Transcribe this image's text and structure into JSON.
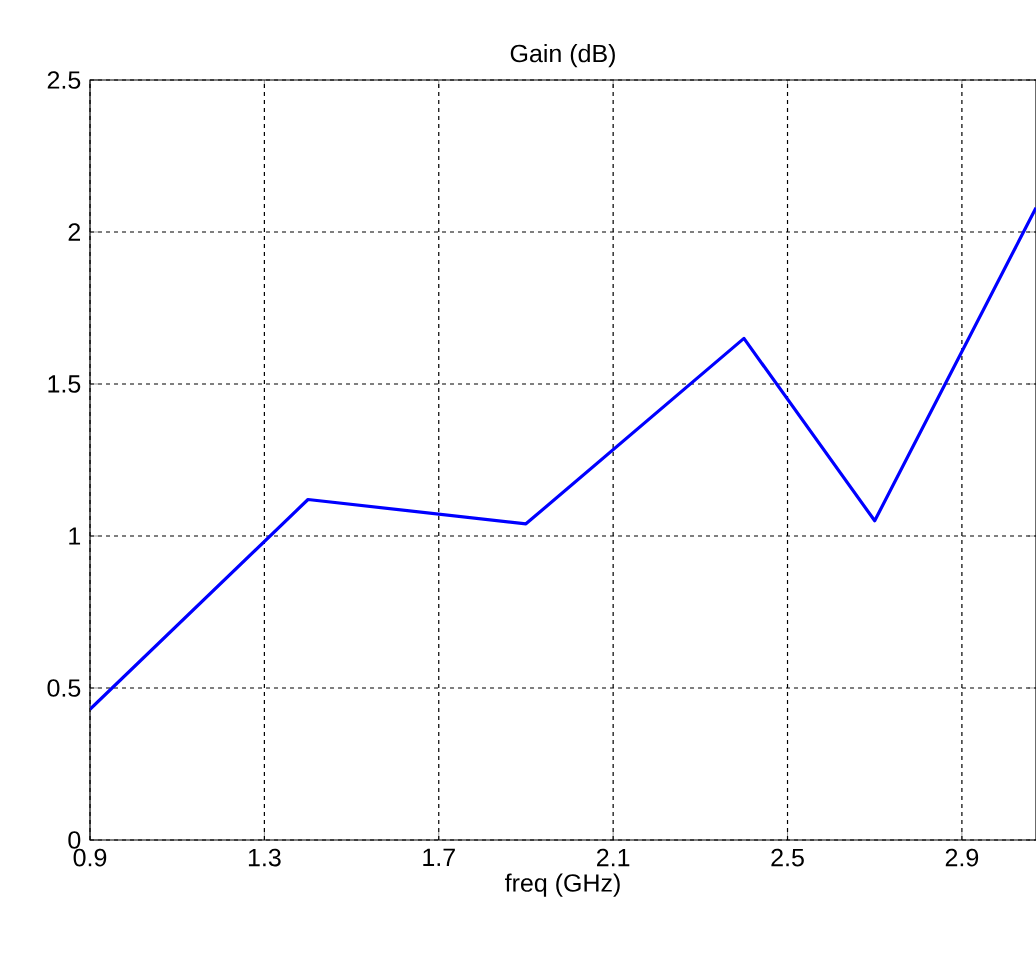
{
  "chart_data": {
    "type": "line",
    "title": "Gain (dB)",
    "xlabel": "freq (GHz)",
    "x": [
      0.9,
      1.4,
      1.9,
      2.4,
      2.7,
      3.07
    ],
    "series": [
      {
        "color": "#0000ff",
        "values": [
          0.43,
          1.12,
          1.04,
          1.65,
          1.05,
          2.08
        ]
      }
    ],
    "xlim": [
      0.9,
      3.07
    ],
    "ylim": [
      0,
      2.5
    ],
    "xticks": [
      0.9,
      1.3,
      1.7,
      2.1,
      2.5,
      2.9
    ],
    "yticks": [
      0,
      0.5,
      1,
      1.5,
      2,
      2.5
    ],
    "grid": true,
    "line_style": "solid",
    "marker": "none"
  }
}
